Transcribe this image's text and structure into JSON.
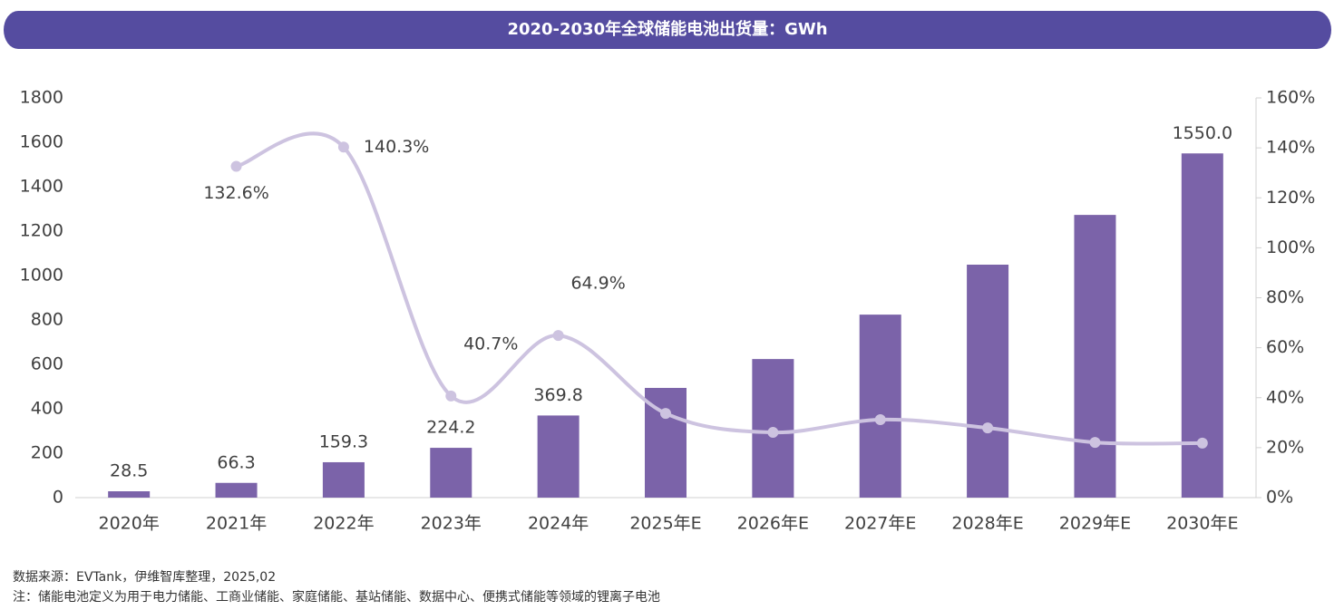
{
  "chart_data": {
    "type": "bar-line",
    "title": "2020-2030年全球储能电池出货量：GWh",
    "categories": [
      "2020年",
      "2021年",
      "2022年",
      "2023年",
      "2024年",
      "2025年E",
      "2026年E",
      "2027年E",
      "2028年E",
      "2029年E",
      "2030年E"
    ],
    "series": [
      {
        "type": "bar",
        "color": "#7b63a9",
        "values": [
          28.5,
          66.3,
          159.3,
          224.2,
          369.8,
          494,
          624,
          824,
          1049,
          1273,
          1550
        ],
        "value_labels": [
          "28.5",
          "66.3",
          "159.3",
          "224.2",
          "369.8",
          null,
          null,
          null,
          null,
          null,
          "1550.0"
        ]
      },
      {
        "type": "line",
        "axis": "y2",
        "color": "#cdc3e0",
        "values": [
          null,
          132.6,
          140.3,
          40.7,
          64.9,
          33.7,
          26.1,
          31.2,
          27.9,
          22.1,
          21.8
        ],
        "value_labels": [
          null,
          "132.6%",
          "140.3%",
          "40.7%",
          "64.9%",
          null,
          null,
          null,
          null,
          null,
          null
        ]
      }
    ],
    "ylim": [
      0,
      1800
    ],
    "yticks": [
      0,
      200,
      400,
      600,
      800,
      1000,
      1200,
      1400,
      1600,
      1800
    ],
    "y2lim": [
      0,
      160
    ],
    "y2ticks": [
      {
        "value": 0,
        "label": "0%"
      },
      {
        "value": 20,
        "label": "20%"
      },
      {
        "value": 40,
        "label": "40%"
      },
      {
        "value": 60,
        "label": "60%"
      },
      {
        "value": 80,
        "label": "80%"
      },
      {
        "value": 100,
        "label": "100%"
      },
      {
        "value": 120,
        "label": "120%"
      },
      {
        "value": 140,
        "label": "140%"
      },
      {
        "value": 160,
        "label": "160%"
      }
    ],
    "source": "数据来源：EVTank，伊维智库整理，2025,02",
    "note": "注：储能电池定义为用于电力储能、工商业储能、家庭储能、基站储能、数据中心、便携式储能等领域的锂离子电池"
  }
}
